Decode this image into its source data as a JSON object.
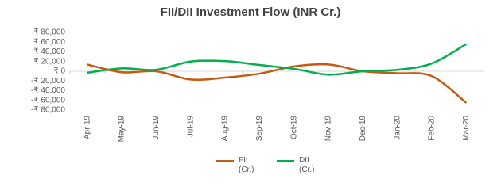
{
  "chart_data": {
    "type": "line",
    "title": "FII/DII Investment Flow (INR Cr.)",
    "categories": [
      "Apr-19",
      "May-19",
      "Jun-19",
      "Jul-19",
      "Aug-19",
      "Sep-19",
      "Oct-19",
      "Nov-19",
      "Dec-19",
      "Jan-20",
      "Feb-20",
      "Mar-20"
    ],
    "series": [
      {
        "name": "FII (Cr.)",
        "color": "#c55a11",
        "values": [
          14000,
          -2000,
          0,
          -17000,
          -13000,
          -5000,
          10000,
          14000,
          0,
          -4000,
          -10000,
          -65000
        ]
      },
      {
        "name": "DII (Cr.)",
        "color": "#00b050",
        "values": [
          -3000,
          6000,
          3000,
          20000,
          21000,
          13000,
          5000,
          -7000,
          0,
          3000,
          16000,
          56000
        ]
      }
    ],
    "ylim": [
      -80000,
      80000
    ],
    "yticks": [
      {
        "value": 80000,
        "label": "₹ 80,000"
      },
      {
        "value": 60000,
        "label": "₹ 60,000"
      },
      {
        "value": 40000,
        "label": "₹ 40,000"
      },
      {
        "value": 20000,
        "label": "₹ 20,000"
      },
      {
        "value": 0,
        "label": "₹ 0"
      },
      {
        "value": -20000,
        "label": "-₹ 20,000"
      },
      {
        "value": -40000,
        "label": "-₹ 40,000"
      },
      {
        "value": -60000,
        "label": "-₹ 60,000"
      },
      {
        "value": -80000,
        "label": "-₹ 80,000"
      }
    ],
    "legend": "bottom"
  }
}
